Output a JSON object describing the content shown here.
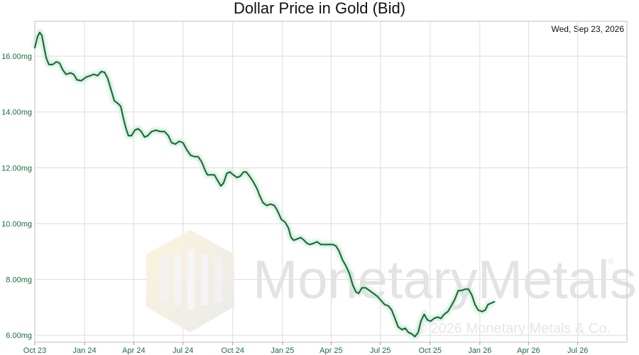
{
  "chart_data": {
    "type": "line",
    "title": "Dollar Price in Gold (Bid)",
    "date_label": "Wed, Sep 23, 2026",
    "xlabel": "",
    "ylabel": "",
    "y_unit": "mg",
    "ylim": [
      5.75,
      17.25
    ],
    "xlim": [
      "2023-10-01",
      "2026-09-30"
    ],
    "y_ticks": [
      "6.00mg",
      "8.00mg",
      "10.00mg",
      "12.00mg",
      "14.00mg",
      "16.00mg"
    ],
    "x_ticks": [
      "Oct 23",
      "Jan 24",
      "Apr 24",
      "Jul 24",
      "Oct 24",
      "Jan 25",
      "Apr 25",
      "Jul 25",
      "Oct 25",
      "Jan 26",
      "Apr 26",
      "Jul 26"
    ],
    "grid": true,
    "series": [
      {
        "color": "#0d6b30",
        "points": [
          [
            "2023-10-01",
            16.3
          ],
          [
            "2023-10-06",
            16.7
          ],
          [
            "2023-10-10",
            16.85
          ],
          [
            "2023-10-14",
            16.75
          ],
          [
            "2023-10-18",
            16.35
          ],
          [
            "2023-10-22",
            15.95
          ],
          [
            "2023-10-27",
            15.7
          ],
          [
            "2023-11-03",
            15.7
          ],
          [
            "2023-11-10",
            15.8
          ],
          [
            "2023-11-16",
            15.75
          ],
          [
            "2023-11-22",
            15.5
          ],
          [
            "2023-11-28",
            15.35
          ],
          [
            "2023-12-06",
            15.4
          ],
          [
            "2023-12-12",
            15.35
          ],
          [
            "2023-12-18",
            15.15
          ],
          [
            "2023-12-26",
            15.12
          ],
          [
            "2024-01-04",
            15.25
          ],
          [
            "2024-01-12",
            15.3
          ],
          [
            "2024-01-18",
            15.35
          ],
          [
            "2024-01-25",
            15.3
          ],
          [
            "2024-02-01",
            15.45
          ],
          [
            "2024-02-07",
            15.42
          ],
          [
            "2024-02-13",
            15.2
          ],
          [
            "2024-02-19",
            14.8
          ],
          [
            "2024-02-25",
            14.4
          ],
          [
            "2024-03-03",
            14.3
          ],
          [
            "2024-03-08",
            14.2
          ],
          [
            "2024-03-12",
            13.85
          ],
          [
            "2024-03-17",
            13.45
          ],
          [
            "2024-03-22",
            13.15
          ],
          [
            "2024-03-28",
            13.15
          ],
          [
            "2024-04-03",
            13.35
          ],
          [
            "2024-04-09",
            13.4
          ],
          [
            "2024-04-15",
            13.3
          ],
          [
            "2024-04-21",
            13.1
          ],
          [
            "2024-04-27",
            13.15
          ],
          [
            "2024-05-04",
            13.3
          ],
          [
            "2024-05-12",
            13.35
          ],
          [
            "2024-05-20",
            13.3
          ],
          [
            "2024-05-28",
            13.3
          ],
          [
            "2024-06-04",
            13.15
          ],
          [
            "2024-06-10",
            12.9
          ],
          [
            "2024-06-17",
            12.85
          ],
          [
            "2024-06-24",
            12.95
          ],
          [
            "2024-07-01",
            12.9
          ],
          [
            "2024-07-08",
            12.65
          ],
          [
            "2024-07-15",
            12.45
          ],
          [
            "2024-07-22",
            12.4
          ],
          [
            "2024-07-29",
            12.4
          ],
          [
            "2024-08-05",
            12.2
          ],
          [
            "2024-08-10",
            11.95
          ],
          [
            "2024-08-15",
            11.75
          ],
          [
            "2024-08-22",
            11.75
          ],
          [
            "2024-08-28",
            11.75
          ],
          [
            "2024-09-03",
            11.55
          ],
          [
            "2024-09-09",
            11.35
          ],
          [
            "2024-09-14",
            11.45
          ],
          [
            "2024-09-20",
            11.8
          ],
          [
            "2024-09-26",
            11.85
          ],
          [
            "2024-10-02",
            11.75
          ],
          [
            "2024-10-09",
            11.65
          ],
          [
            "2024-10-15",
            11.7
          ],
          [
            "2024-10-21",
            11.85
          ],
          [
            "2024-10-26",
            11.85
          ],
          [
            "2024-11-01",
            11.7
          ],
          [
            "2024-11-08",
            11.5
          ],
          [
            "2024-11-15",
            11.25
          ],
          [
            "2024-11-20",
            11.0
          ],
          [
            "2024-11-26",
            10.75
          ],
          [
            "2024-12-03",
            10.65
          ],
          [
            "2024-12-10",
            10.7
          ],
          [
            "2024-12-17",
            10.65
          ],
          [
            "2024-12-23",
            10.45
          ],
          [
            "2024-12-30",
            10.15
          ],
          [
            "2025-01-06",
            10.05
          ],
          [
            "2025-01-12",
            9.85
          ],
          [
            "2025-01-17",
            9.5
          ],
          [
            "2025-01-22",
            9.4
          ],
          [
            "2025-01-28",
            9.45
          ],
          [
            "2025-02-04",
            9.5
          ],
          [
            "2025-02-10",
            9.4
          ],
          [
            "2025-02-15",
            9.3
          ],
          [
            "2025-02-21",
            9.25
          ],
          [
            "2025-02-28",
            9.3
          ],
          [
            "2025-03-06",
            9.35
          ],
          [
            "2025-03-13",
            9.25
          ],
          [
            "2025-03-20",
            9.25
          ],
          [
            "2025-03-27",
            9.25
          ],
          [
            "2025-04-04",
            9.25
          ],
          [
            "2025-04-10",
            9.2
          ],
          [
            "2025-04-16",
            9.0
          ],
          [
            "2025-04-22",
            8.7
          ],
          [
            "2025-04-28",
            8.5
          ],
          [
            "2025-05-05",
            8.2
          ],
          [
            "2025-05-11",
            7.8
          ],
          [
            "2025-05-17",
            7.55
          ],
          [
            "2025-05-22",
            7.5
          ],
          [
            "2025-05-28",
            7.7
          ],
          [
            "2025-06-04",
            7.7
          ],
          [
            "2025-06-11",
            7.6
          ],
          [
            "2025-06-18",
            7.5
          ],
          [
            "2025-06-25",
            7.4
          ],
          [
            "2025-07-02",
            7.25
          ],
          [
            "2025-07-09",
            7.1
          ],
          [
            "2025-07-16",
            7.05
          ],
          [
            "2025-07-22",
            6.9
          ],
          [
            "2025-07-28",
            6.6
          ],
          [
            "2025-08-03",
            6.3
          ],
          [
            "2025-08-10",
            6.2
          ],
          [
            "2025-08-16",
            6.25
          ],
          [
            "2025-08-22",
            6.1
          ],
          [
            "2025-08-28",
            6.05
          ],
          [
            "2025-09-03",
            5.95
          ],
          [
            "2025-09-09",
            6.1
          ],
          [
            "2025-09-14",
            6.5
          ],
          [
            "2025-09-20",
            6.75
          ],
          [
            "2025-09-26",
            6.55
          ],
          [
            "2025-10-02",
            6.5
          ],
          [
            "2025-10-08",
            6.6
          ],
          [
            "2025-10-15",
            6.65
          ],
          [
            "2025-10-21",
            6.6
          ],
          [
            "2025-10-27",
            6.75
          ],
          [
            "2025-11-03",
            6.85
          ],
          [
            "2025-11-09",
            7.05
          ],
          [
            "2025-11-16",
            7.3
          ],
          [
            "2025-11-22",
            7.6
          ],
          [
            "2025-11-28",
            7.6
          ],
          [
            "2025-12-05",
            7.65
          ],
          [
            "2025-12-11",
            7.65
          ],
          [
            "2025-12-17",
            7.45
          ],
          [
            "2025-12-23",
            7.1
          ],
          [
            "2025-12-29",
            6.9
          ],
          [
            "2026-01-05",
            6.85
          ],
          [
            "2026-01-11",
            6.9
          ],
          [
            "2026-01-16",
            7.1
          ],
          [
            "2026-01-22",
            7.15
          ],
          [
            "2026-01-28",
            7.2
          ]
        ]
      }
    ]
  },
  "watermark": {
    "brand_text": "MonetaryMetals",
    "registered_mark": "®",
    "copyright": "© 2026 Monetary Metals & Co."
  }
}
